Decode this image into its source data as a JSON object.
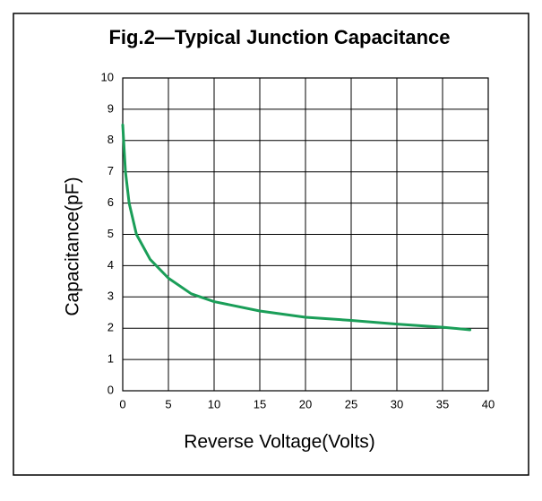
{
  "chart_data": {
    "type": "line",
    "title": "Fig.2—Typical  Junction  Capacitance",
    "x_label": "Reverse Voltage(Volts)",
    "y_label": "Capacitance(pF)",
    "x": [
      0,
      0.3,
      0.7,
      1.5,
      3,
      5,
      7.5,
      10,
      15,
      20,
      25,
      30,
      35,
      38
    ],
    "series": [
      {
        "name": "Capacitance",
        "color": "#1a9e58",
        "values": [
          8.5,
          7,
          6,
          5,
          4.2,
          3.6,
          3.1,
          2.85,
          2.55,
          2.35,
          2.25,
          2.13,
          2.03,
          1.95
        ]
      }
    ],
    "xlim": [
      0,
      40
    ],
    "xticks": [
      0,
      5,
      10,
      15,
      20,
      25,
      30,
      35,
      40
    ],
    "ylim": [
      0,
      10
    ],
    "yticks": [
      0,
      1,
      2,
      3,
      4,
      5,
      6,
      7,
      8,
      9,
      10
    ],
    "grid": true
  }
}
